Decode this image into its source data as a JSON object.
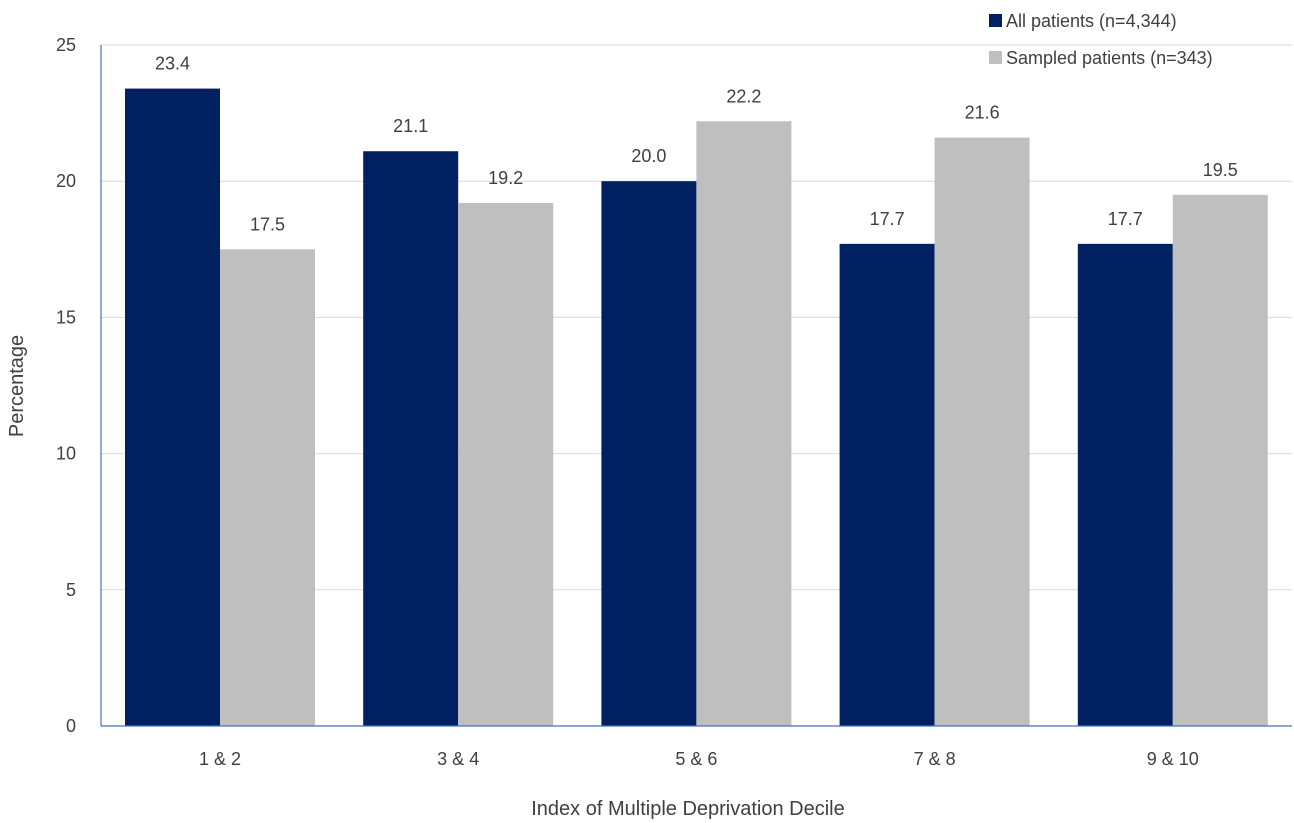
{
  "chart_data": {
    "type": "bar",
    "title": "",
    "xlabel": "Index of Multiple Deprivation Decile",
    "ylabel": "Percentage",
    "categories": [
      "1 & 2",
      "3 & 4",
      "5 & 6",
      "7 & 8",
      "9 & 10"
    ],
    "series": [
      {
        "name": "All patients (n=4,344)",
        "color": "#002060",
        "values": [
          23.4,
          21.1,
          20.0,
          17.7,
          17.7
        ],
        "labels": [
          "23.4",
          "21.1",
          "20.0",
          "17.7",
          "17.7"
        ]
      },
      {
        "name": "Sampled patients (n=343)",
        "color": "#BFBFBF",
        "values": [
          17.5,
          19.2,
          22.2,
          21.6,
          19.5
        ],
        "labels": [
          "17.5",
          "19.2",
          "22.2",
          "21.6",
          "19.5"
        ]
      }
    ],
    "ylim": [
      0,
      25
    ],
    "yticks": [
      0,
      5,
      10,
      15,
      20,
      25
    ],
    "grid": true,
    "legend": "top-right",
    "axis_color": "#4472C4",
    "grid_color": "#D9D9D9"
  }
}
